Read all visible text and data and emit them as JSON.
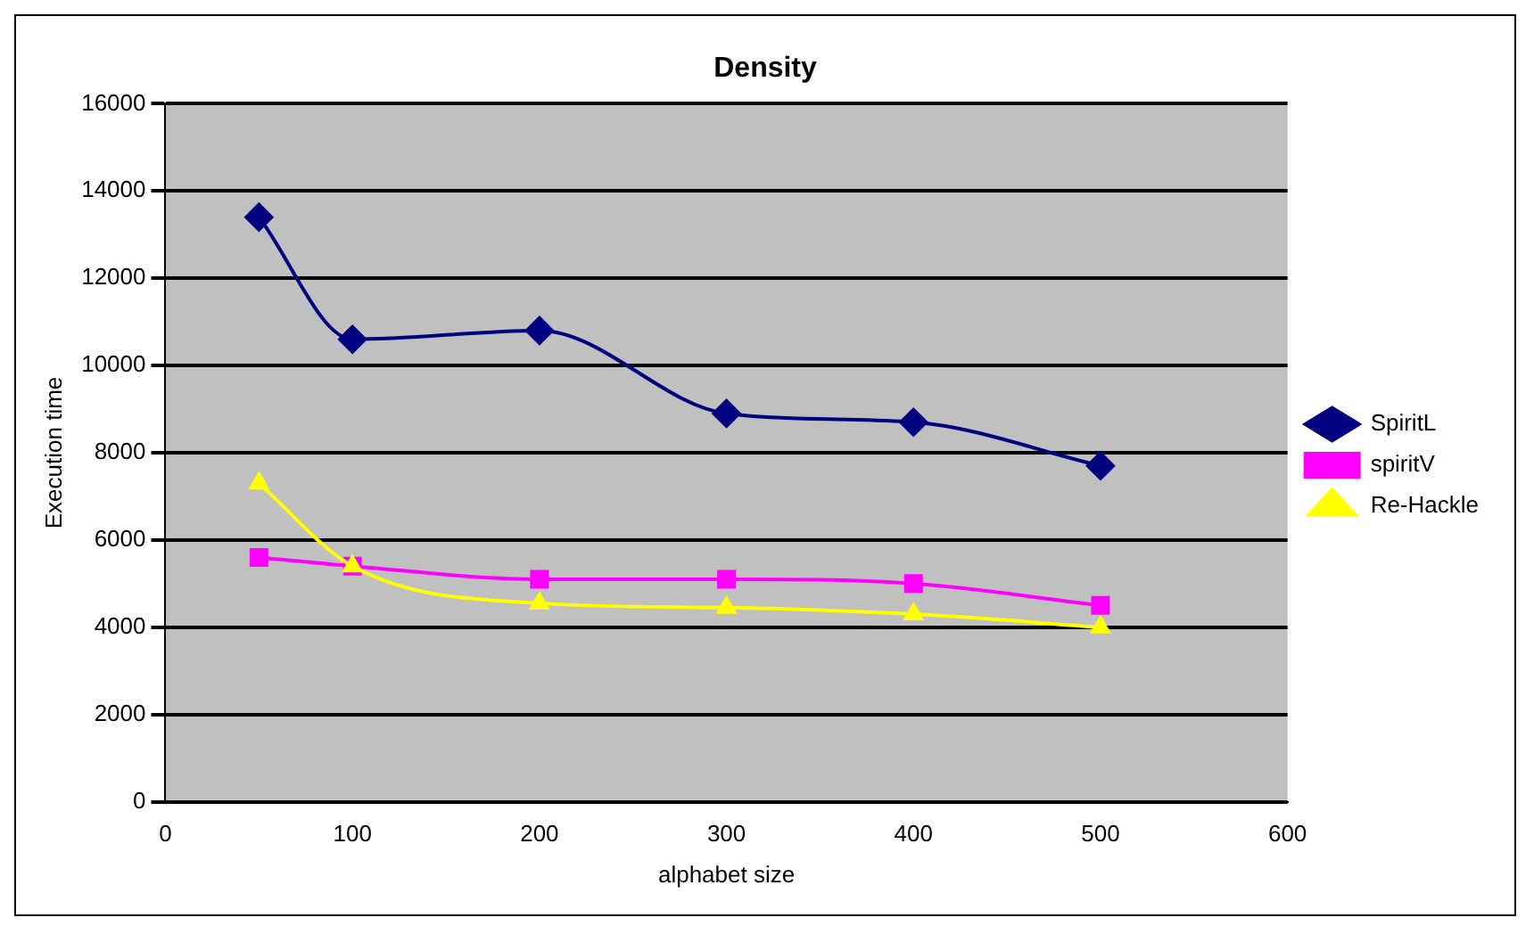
{
  "chart_data": {
    "type": "line",
    "title": "Density",
    "xlabel": "alphabet size",
    "ylabel": "Execution time",
    "x": [
      50,
      100,
      200,
      300,
      400,
      500
    ],
    "series": [
      {
        "name": "SpiritL",
        "color": "#000080",
        "marker": "diamond",
        "values": [
          13400,
          10600,
          10800,
          8900,
          8700,
          7700
        ]
      },
      {
        "name": "spiritV",
        "color": "#ff00ff",
        "marker": "square",
        "values": [
          5600,
          5400,
          5100,
          5100,
          5000,
          4500
        ]
      },
      {
        "name": "Re-Hackle",
        "color": "#ffff00",
        "marker": "triangle",
        "values": [
          7300,
          5400,
          4550,
          4450,
          4300,
          4000
        ]
      }
    ],
    "xlim": [
      0,
      600
    ],
    "xticks": [
      0,
      100,
      200,
      300,
      400,
      500,
      600
    ],
    "ylim": [
      0,
      16000
    ],
    "yticks": [
      0,
      2000,
      4000,
      6000,
      8000,
      10000,
      12000,
      14000,
      16000
    ],
    "grid": "y",
    "legend": "right"
  }
}
